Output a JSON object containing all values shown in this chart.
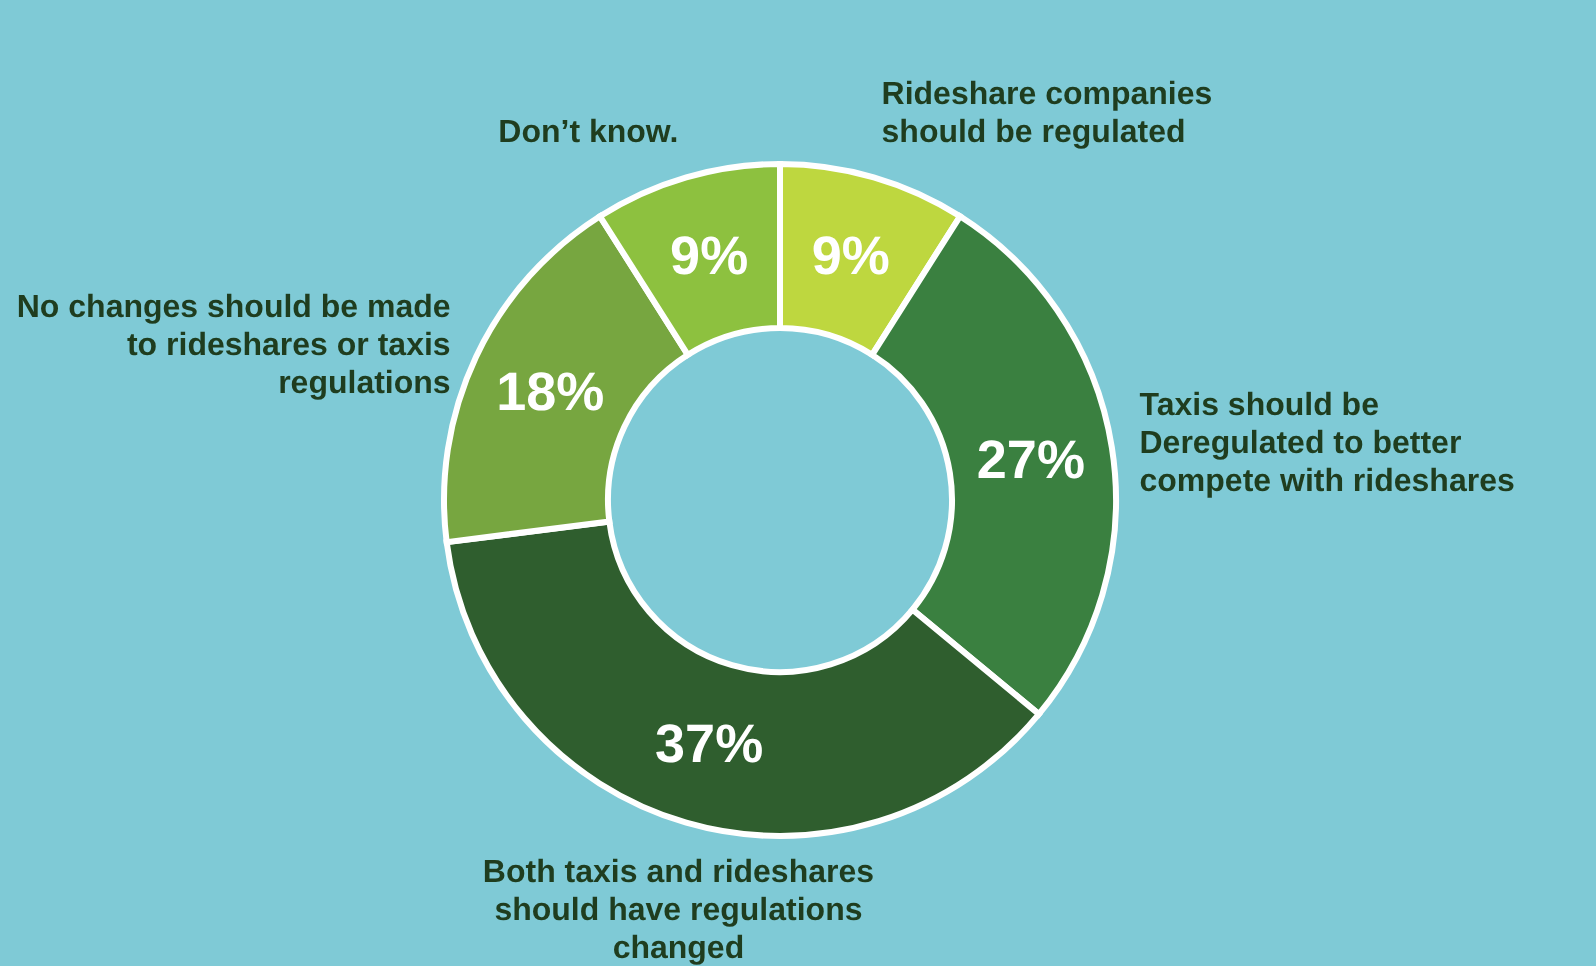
{
  "chart_data": {
    "type": "donut",
    "categories": [
      "Rideshare companies should be regulated",
      "Taxis should be Deregulated to better compete with rideshares",
      "Both taxis and rideshares should have regulations changed",
      "No changes should be made to rideshares or taxis regulations",
      "Don’t know."
    ],
    "values": [
      9,
      27,
      37,
      18,
      9
    ],
    "value_labels": [
      "9%",
      "27%",
      "37%",
      "18%",
      "9%"
    ],
    "colors": [
      "#bed73f",
      "#3a8040",
      "#2f5e2e",
      "#77a640",
      "#8dc13f"
    ]
  }
}
